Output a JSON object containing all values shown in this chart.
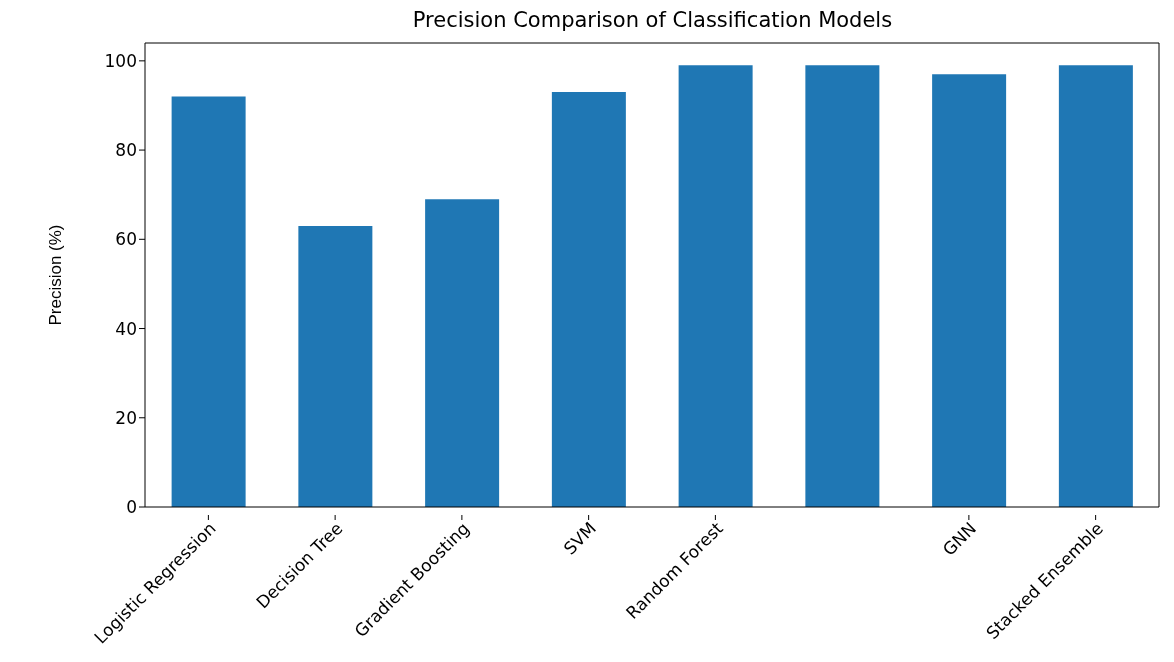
{
  "chart_data": {
    "type": "bar",
    "title": "Precision Comparison of Classification Models",
    "ylabel": "Precision (%)",
    "categories": [
      "Logistic Regression",
      "Decision Tree",
      "Gradient Boosting",
      "SVM",
      "Random Forest",
      null,
      "GNN",
      "Stacked Ensemble"
    ],
    "values": [
      92,
      63,
      69,
      93,
      99,
      99,
      97,
      99
    ],
    "color": "#1f77b4",
    "ylim": [
      0,
      104
    ],
    "yticks": [
      0,
      20,
      40,
      60,
      80,
      100
    ],
    "grid": false,
    "legend": false
  }
}
